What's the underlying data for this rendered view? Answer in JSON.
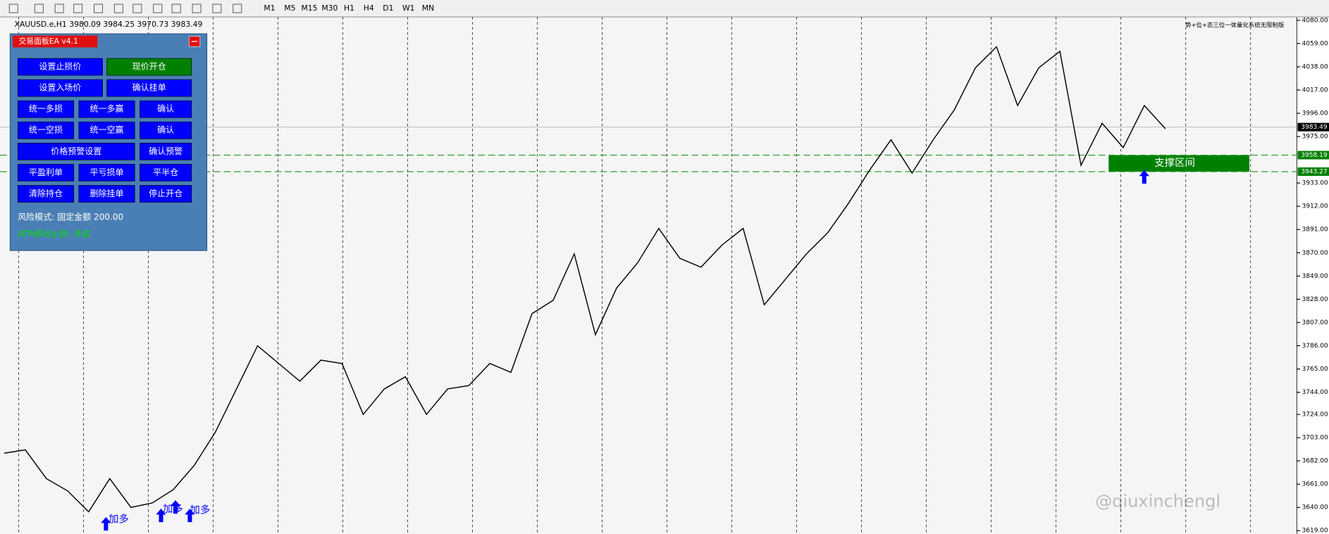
{
  "toolbar": {
    "timeframes": [
      "M1",
      "M5",
      "M15",
      "M30",
      "H1",
      "H4",
      "D1",
      "W1",
      "MN"
    ]
  },
  "symbol_info": "XAUUSD.e,H1  3980.09 3984.25 3970.73 3983.49",
  "corner_note": "势+位+态三位一体量化系统无限制版",
  "panel": {
    "title": "交易面板EA v4.1",
    "rows": [
      [
        "设置止损价",
        "现价开仓"
      ],
      [
        "设置入场价",
        "确认挂单"
      ],
      [
        "统一多损",
        "统一多赢",
        "确认"
      ],
      [
        "统一空损",
        "统一空赢",
        "确认"
      ],
      [
        "价格预警设置",
        "确认预警"
      ],
      [
        "平盈利单",
        "平亏损单",
        "平半仓"
      ],
      [
        "清除持仓",
        "删除挂单",
        "停止开仓"
      ]
    ],
    "risk_mode": "风险模式: 固定金额 200.00",
    "atr_stop": "ATR移动止损: 开启"
  },
  "annotations": {
    "add_long": [
      "加多",
      "加多",
      "加多"
    ],
    "support": "支撑区间",
    "watermark": "@qiuxinchengl"
  },
  "chart_data": {
    "type": "line",
    "color": "#000000",
    "values": [
      3689,
      3692,
      3666,
      3655,
      3636,
      3666,
      3640,
      3644,
      3656,
      3678,
      3708,
      3747,
      3786,
      3770,
      3754,
      3773,
      3770,
      3724,
      3747,
      3758,
      3724,
      3747,
      3750,
      3770,
      3762,
      3815,
      3827,
      3869,
      3796,
      3838,
      3861,
      3892,
      3865,
      3857,
      3877,
      3892,
      3823,
      3846,
      3869,
      3888,
      3915,
      3945,
      3972,
      3942,
      3972,
      3999,
      4037,
      4056,
      4003,
      4037,
      4052,
      3949,
      3987,
      3965,
      4003,
      3982
    ],
    "ylim": [
      3616,
      4083
    ],
    "yticks": [
      {
        "value": 4080,
        "label": "4080.00"
      },
      {
        "value": 4059,
        "label": "4059.00"
      },
      {
        "value": 4038,
        "label": "4038.00"
      },
      {
        "value": 4017,
        "label": "4017.00"
      },
      {
        "value": 3996,
        "label": "3996.00"
      },
      {
        "value": 3975,
        "label": "3975.00"
      },
      {
        "value": 3933,
        "label": "3933.00"
      },
      {
        "value": 3912,
        "label": "3912.00"
      },
      {
        "value": 3891,
        "label": "3891.00"
      },
      {
        "value": 3870,
        "label": "3870.00"
      },
      {
        "value": 3849,
        "label": "3849.00"
      },
      {
        "value": 3828,
        "label": "3828.00"
      },
      {
        "value": 3807,
        "label": "3807.00"
      },
      {
        "value": 3786,
        "label": "3786.00"
      },
      {
        "value": 3765,
        "label": "3765.00"
      },
      {
        "value": 3744,
        "label": "3744.00"
      },
      {
        "value": 3724,
        "label": "3724.00"
      },
      {
        "value": 3703,
        "label": "3703.00"
      },
      {
        "value": 3682,
        "label": "3682.00"
      },
      {
        "value": 3661,
        "label": "3661.00"
      },
      {
        "value": 3640,
        "label": "3640.00"
      },
      {
        "value": 3619,
        "label": "3619.00"
      }
    ],
    "current_price": 3983.49,
    "support_levels": [
      3958.19,
      3943.27
    ]
  }
}
